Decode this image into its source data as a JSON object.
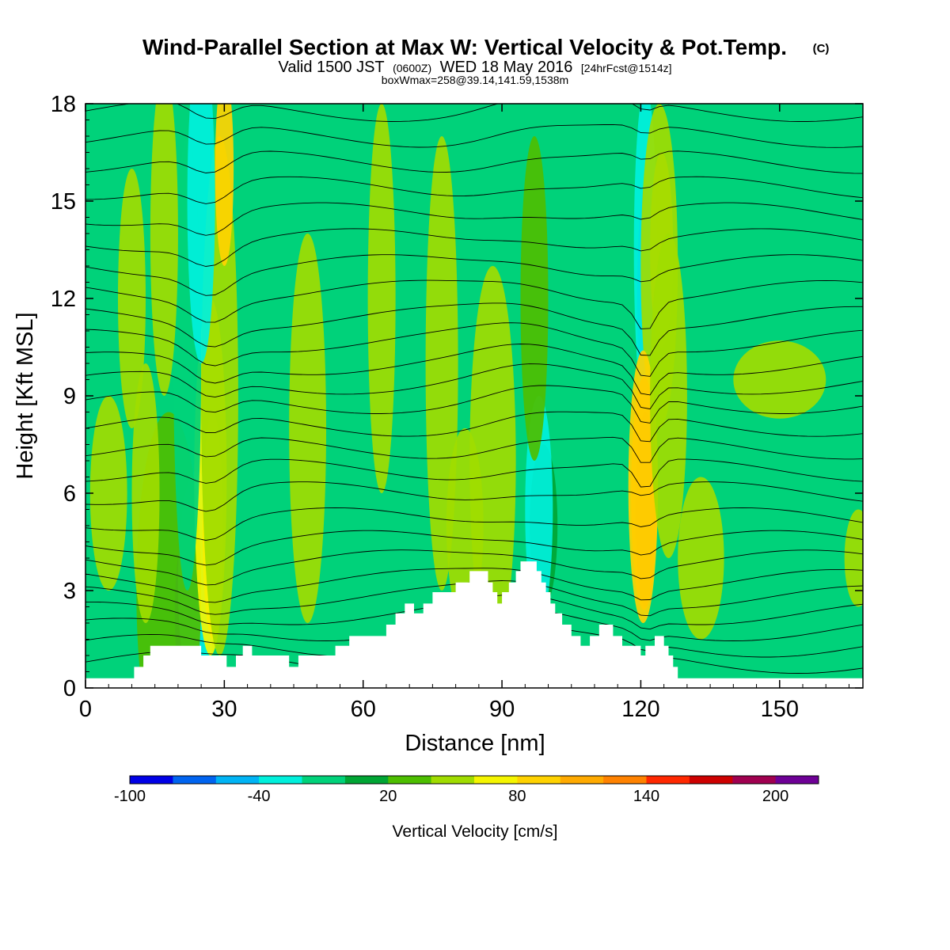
{
  "title": {
    "main": "Wind-Parallel Section at Max W: Vertical Velocity & Pot.Temp.",
    "main_suffix": "(C)",
    "valid_prefix": "Valid 1500 JST",
    "valid_zulu": "(0600Z)",
    "valid_date": "WED 18 May 2016",
    "forecast": "[24hrFcst@1514z]",
    "box_info": "boxWmax=258@39.14,141.59,1538m"
  },
  "chart_data": {
    "type": "heatmap",
    "xlabel": "Distance [nm]",
    "ylabel": "Height [Kft MSL]",
    "xlim": [
      0,
      168
    ],
    "ylim": [
      0,
      18
    ],
    "x_ticks": [
      0,
      30,
      60,
      90,
      120,
      150
    ],
    "y_ticks": [
      0,
      3,
      6,
      9,
      12,
      15,
      18
    ],
    "background_color": "#00d27a",
    "terrain_color": "#ffffff",
    "terrain_profile": [
      [
        0,
        0.3
      ],
      [
        10.5,
        0.3
      ],
      [
        10.5,
        0.65
      ],
      [
        12.5,
        0.65
      ],
      [
        12.5,
        1.0
      ],
      [
        14,
        1.0
      ],
      [
        14,
        1.3
      ],
      [
        25,
        1.3
      ],
      [
        25,
        1.0
      ],
      [
        30.5,
        1.0
      ],
      [
        30.5,
        0.65
      ],
      [
        32.5,
        0.65
      ],
      [
        32.5,
        1.0
      ],
      [
        34,
        1.0
      ],
      [
        34,
        1.3
      ],
      [
        36,
        1.3
      ],
      [
        36,
        1.0
      ],
      [
        44,
        1.0
      ],
      [
        44,
        0.65
      ],
      [
        46,
        0.65
      ],
      [
        46,
        1.0
      ],
      [
        54,
        1.0
      ],
      [
        54,
        1.3
      ],
      [
        57,
        1.3
      ],
      [
        57,
        1.6
      ],
      [
        65,
        1.6
      ],
      [
        65,
        1.95
      ],
      [
        67,
        1.95
      ],
      [
        67,
        2.3
      ],
      [
        69,
        2.3
      ],
      [
        69,
        2.6
      ],
      [
        71,
        2.6
      ],
      [
        71,
        2.3
      ],
      [
        73,
        2.3
      ],
      [
        73,
        2.6
      ],
      [
        75,
        2.6
      ],
      [
        75,
        2.95
      ],
      [
        80,
        2.95
      ],
      [
        80,
        3.25
      ],
      [
        83,
        3.25
      ],
      [
        83,
        3.6
      ],
      [
        87,
        3.6
      ],
      [
        87,
        3.25
      ],
      [
        88,
        3.25
      ],
      [
        88,
        2.95
      ],
      [
        89,
        2.95
      ],
      [
        89,
        2.6
      ],
      [
        90,
        2.6
      ],
      [
        90,
        2.95
      ],
      [
        91.5,
        2.95
      ],
      [
        91.5,
        3.25
      ],
      [
        93,
        3.25
      ],
      [
        93,
        3.6
      ],
      [
        94,
        3.6
      ],
      [
        94,
        3.9
      ],
      [
        97.5,
        3.9
      ],
      [
        97.5,
        3.6
      ],
      [
        98.5,
        3.6
      ],
      [
        98.5,
        3.25
      ],
      [
        99.5,
        3.25
      ],
      [
        99.5,
        2.95
      ],
      [
        100.5,
        2.95
      ],
      [
        100.5,
        2.6
      ],
      [
        101.5,
        2.6
      ],
      [
        101.5,
        2.3
      ],
      [
        103,
        2.3
      ],
      [
        103,
        1.95
      ],
      [
        105,
        1.95
      ],
      [
        105,
        1.6
      ],
      [
        107,
        1.6
      ],
      [
        107,
        1.3
      ],
      [
        109,
        1.3
      ],
      [
        109,
        1.6
      ],
      [
        111,
        1.6
      ],
      [
        111,
        1.95
      ],
      [
        114,
        1.95
      ],
      [
        114,
        1.6
      ],
      [
        116,
        1.6
      ],
      [
        116,
        1.3
      ],
      [
        120,
        1.3
      ],
      [
        120,
        1.0
      ],
      [
        121,
        1.0
      ],
      [
        121,
        1.3
      ],
      [
        123,
        1.3
      ],
      [
        123,
        1.6
      ],
      [
        125,
        1.6
      ],
      [
        125,
        1.3
      ],
      [
        126,
        1.3
      ],
      [
        126,
        1.0
      ],
      [
        127,
        1.0
      ],
      [
        127,
        0.65
      ],
      [
        128,
        0.65
      ],
      [
        128,
        0.3
      ],
      [
        168,
        0.3
      ]
    ],
    "velocity_features": [
      {
        "x": 22.5,
        "y": 2.3,
        "rx": 3.2,
        "ry": 2.8,
        "value": -95
      },
      {
        "x": 24,
        "y": 3.2,
        "rx": 4,
        "ry": 3.5,
        "value": -55
      },
      {
        "x": 18,
        "y": 3.0,
        "rx": 7,
        "ry": 5.5,
        "value": 10
      },
      {
        "x": 27.5,
        "y": 5.0,
        "rx": 2.2,
        "ry": 3.5,
        "value": 85
      },
      {
        "x": 27,
        "y": 6.5,
        "rx": 3.5,
        "ry": 5.5,
        "value": 55
      },
      {
        "x": 29,
        "y": 9.0,
        "rx": 4,
        "ry": 8,
        "value": 30
      },
      {
        "x": 22,
        "y": 10,
        "rx": 3,
        "ry": 7,
        "value": -35
      },
      {
        "x": 25,
        "y": 15,
        "rx": 3,
        "ry": 5,
        "value": -60
      },
      {
        "x": 30,
        "y": 16,
        "rx": 2,
        "ry": 3,
        "value": 60
      },
      {
        "x": 17,
        "y": 14,
        "rx": 3,
        "ry": 5,
        "value": 20
      },
      {
        "x": 13,
        "y": 6,
        "rx": 3,
        "ry": 4,
        "value": 20
      },
      {
        "x": 48,
        "y": 8.0,
        "rx": 4,
        "ry": 6,
        "value": 25
      },
      {
        "x": 64,
        "y": 12,
        "rx": 3,
        "ry": 6,
        "value": 20
      },
      {
        "x": 77,
        "y": 10,
        "rx": 3.5,
        "ry": 7,
        "value": 20
      },
      {
        "x": 82,
        "y": 5,
        "rx": 4,
        "ry": 3,
        "value": 20
      },
      {
        "x": 99,
        "y": 5,
        "rx": 3,
        "ry": 2.5,
        "value": -20
      },
      {
        "x": 98,
        "y": 5.5,
        "rx": 3,
        "ry": 3.5,
        "value": -45
      },
      {
        "x": 88,
        "y": 7,
        "rx": 5,
        "ry": 6,
        "value": 20
      },
      {
        "x": 97,
        "y": 12,
        "rx": 3,
        "ry": 5,
        "value": 15
      },
      {
        "x": 121,
        "y": 12.0,
        "rx": 1.8,
        "ry": 3.5,
        "value": -100
      },
      {
        "x": 121,
        "y": 13.5,
        "rx": 2.5,
        "ry": 5,
        "value": -50
      },
      {
        "x": 124.5,
        "y": 13.5,
        "rx": 2.5,
        "ry": 3,
        "value": 60
      },
      {
        "x": 124,
        "y": 13,
        "rx": 4,
        "ry": 5,
        "value": 25
      },
      {
        "x": 121,
        "y": 5.5,
        "rx": 1.5,
        "ry": 2.3,
        "value": 258
      },
      {
        "x": 121,
        "y": 5.5,
        "rx": 2.2,
        "ry": 3.0,
        "value": 180
      },
      {
        "x": 120.7,
        "y": 6.0,
        "rx": 2.8,
        "ry": 3.6,
        "value": 110
      },
      {
        "x": 120.5,
        "y": 6.2,
        "rx": 3.2,
        "ry": 4.2,
        "value": 70
      },
      {
        "x": 126,
        "y": 9,
        "rx": 4,
        "ry": 5,
        "value": 25
      },
      {
        "x": 133,
        "y": 4,
        "rx": 5,
        "ry": 2.5,
        "value": 20
      },
      {
        "x": 150,
        "y": 9.5,
        "rx": 10,
        "ry": 1.2,
        "value": 20
      },
      {
        "x": 167,
        "y": 4,
        "rx": 3,
        "ry": 1.5,
        "value": 20
      },
      {
        "x": 5,
        "y": 6,
        "rx": 4,
        "ry": 3,
        "value": 20
      },
      {
        "x": 10,
        "y": 12,
        "rx": 3,
        "ry": 4,
        "value": 20
      }
    ],
    "isentropes_kft": [
      0.8,
      1.3,
      1.8,
      2.3,
      2.8,
      3.3,
      3.9,
      4.5,
      5.2,
      6.0,
      6.7,
      7.4,
      8.1,
      8.8,
      9.4,
      10.0,
      10.7,
      11.4,
      12.2,
      13.0,
      13.8,
      14.6,
      15.4,
      16.2,
      17.0,
      17.8
    ],
    "colorbar": {
      "title": "Vertical Velocity [cm/s]",
      "labels": [
        "-100",
        "-40",
        "20",
        "80",
        "140",
        "200"
      ],
      "colors": [
        "#0000e6",
        "#0064f0",
        "#00b4f5",
        "#00f0dc",
        "#00d27a",
        "#00a534",
        "#4dbe00",
        "#a0dc00",
        "#f5f500",
        "#ffd200",
        "#ffaa00",
        "#ff8200",
        "#ff2800",
        "#cd0000",
        "#a00050",
        "#6e0096"
      ]
    }
  }
}
